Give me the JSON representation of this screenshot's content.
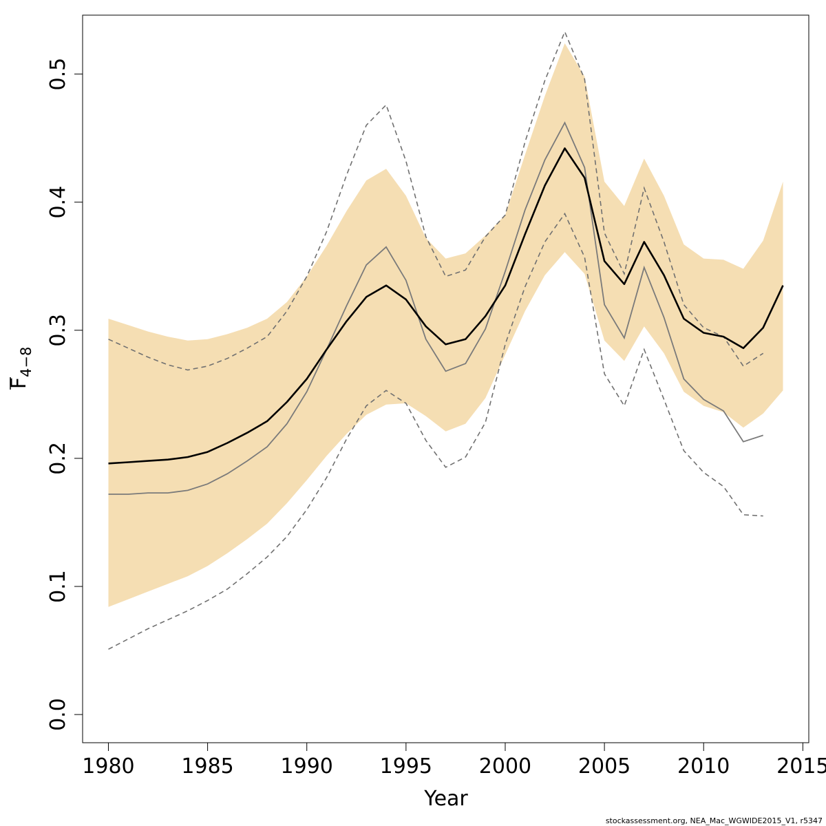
{
  "chart_data": {
    "type": "line",
    "title": "",
    "xlabel": "Year",
    "ylabel_main": "F",
    "ylabel_sub": "4−8",
    "xlim": [
      1978.7,
      2015.3
    ],
    "ylim": [
      -0.022,
      0.546
    ],
    "xticks": [
      1980,
      1985,
      1990,
      1995,
      2000,
      2005,
      2010,
      2015
    ],
    "yticks": [
      0.0,
      0.1,
      0.2,
      0.3,
      0.4,
      0.5
    ],
    "ytick_labels": [
      "0.0",
      "0.1",
      "0.2",
      "0.3",
      "0.4",
      "0.5"
    ],
    "grid": false,
    "colors": {
      "band": "#f5deb3",
      "estimate": "#000000",
      "previous": "#7a7a7a",
      "previous_ci": "#707070",
      "axis": "#000000"
    },
    "x": [
      1980,
      1981,
      1982,
      1983,
      1984,
      1985,
      1986,
      1987,
      1988,
      1989,
      1990,
      1991,
      1992,
      1993,
      1994,
      1995,
      1996,
      1997,
      1998,
      1999,
      2000,
      2001,
      2002,
      2003,
      2004,
      2005,
      2006,
      2007,
      2008,
      2009,
      2010,
      2011,
      2012,
      2013,
      2014
    ],
    "band_upper": [
      0.309,
      0.304,
      0.299,
      0.295,
      0.292,
      0.293,
      0.297,
      0.302,
      0.309,
      0.322,
      0.342,
      0.366,
      0.393,
      0.417,
      0.426,
      0.405,
      0.372,
      0.356,
      0.36,
      0.374,
      0.39,
      0.437,
      0.483,
      0.524,
      0.498,
      0.416,
      0.397,
      0.434,
      0.405,
      0.367,
      0.356,
      0.355,
      0.348,
      0.37,
      0.416
    ],
    "band_lower": [
      0.084,
      0.09,
      0.096,
      0.102,
      0.108,
      0.116,
      0.126,
      0.137,
      0.149,
      0.165,
      0.183,
      0.202,
      0.219,
      0.234,
      0.242,
      0.243,
      0.233,
      0.221,
      0.227,
      0.247,
      0.281,
      0.315,
      0.343,
      0.361,
      0.344,
      0.292,
      0.276,
      0.303,
      0.282,
      0.252,
      0.241,
      0.236,
      0.224,
      0.235,
      0.253
    ],
    "estimate": [
      0.196,
      0.197,
      0.198,
      0.199,
      0.201,
      0.205,
      0.212,
      0.22,
      0.229,
      0.244,
      0.262,
      0.285,
      0.307,
      0.326,
      0.335,
      0.324,
      0.303,
      0.289,
      0.293,
      0.311,
      0.335,
      0.375,
      0.413,
      0.442,
      0.419,
      0.354,
      0.336,
      0.369,
      0.343,
      0.309,
      0.298,
      0.295,
      0.286,
      0.302,
      0.335
    ],
    "previous": [
      0.172,
      0.172,
      0.173,
      0.173,
      0.175,
      0.18,
      0.188,
      0.198,
      0.209,
      0.227,
      0.252,
      0.285,
      0.319,
      0.351,
      0.365,
      0.339,
      0.293,
      0.268,
      0.274,
      0.301,
      0.346,
      0.394,
      0.433,
      0.462,
      0.427,
      0.32,
      0.294,
      0.349,
      0.31,
      0.262,
      0.246,
      0.237,
      0.213,
      0.218
    ],
    "previous_upper": [
      0.293,
      0.286,
      0.279,
      0.273,
      0.269,
      0.272,
      0.278,
      0.286,
      0.295,
      0.315,
      0.342,
      0.377,
      0.421,
      0.46,
      0.476,
      0.432,
      0.373,
      0.342,
      0.347,
      0.373,
      0.39,
      0.447,
      0.495,
      0.533,
      0.496,
      0.376,
      0.344,
      0.411,
      0.369,
      0.32,
      0.302,
      0.295,
      0.272,
      0.282
    ],
    "previous_lower": [
      0.051,
      0.059,
      0.067,
      0.074,
      0.081,
      0.089,
      0.098,
      0.11,
      0.123,
      0.139,
      0.16,
      0.185,
      0.215,
      0.241,
      0.253,
      0.243,
      0.214,
      0.193,
      0.201,
      0.228,
      0.289,
      0.334,
      0.369,
      0.391,
      0.357,
      0.266,
      0.241,
      0.285,
      0.246,
      0.206,
      0.189,
      0.178,
      0.156,
      0.155
    ]
  },
  "footer": {
    "text": "stockassessment.org, NEA_Mac_WGWIDE2015_V1, r5347"
  }
}
